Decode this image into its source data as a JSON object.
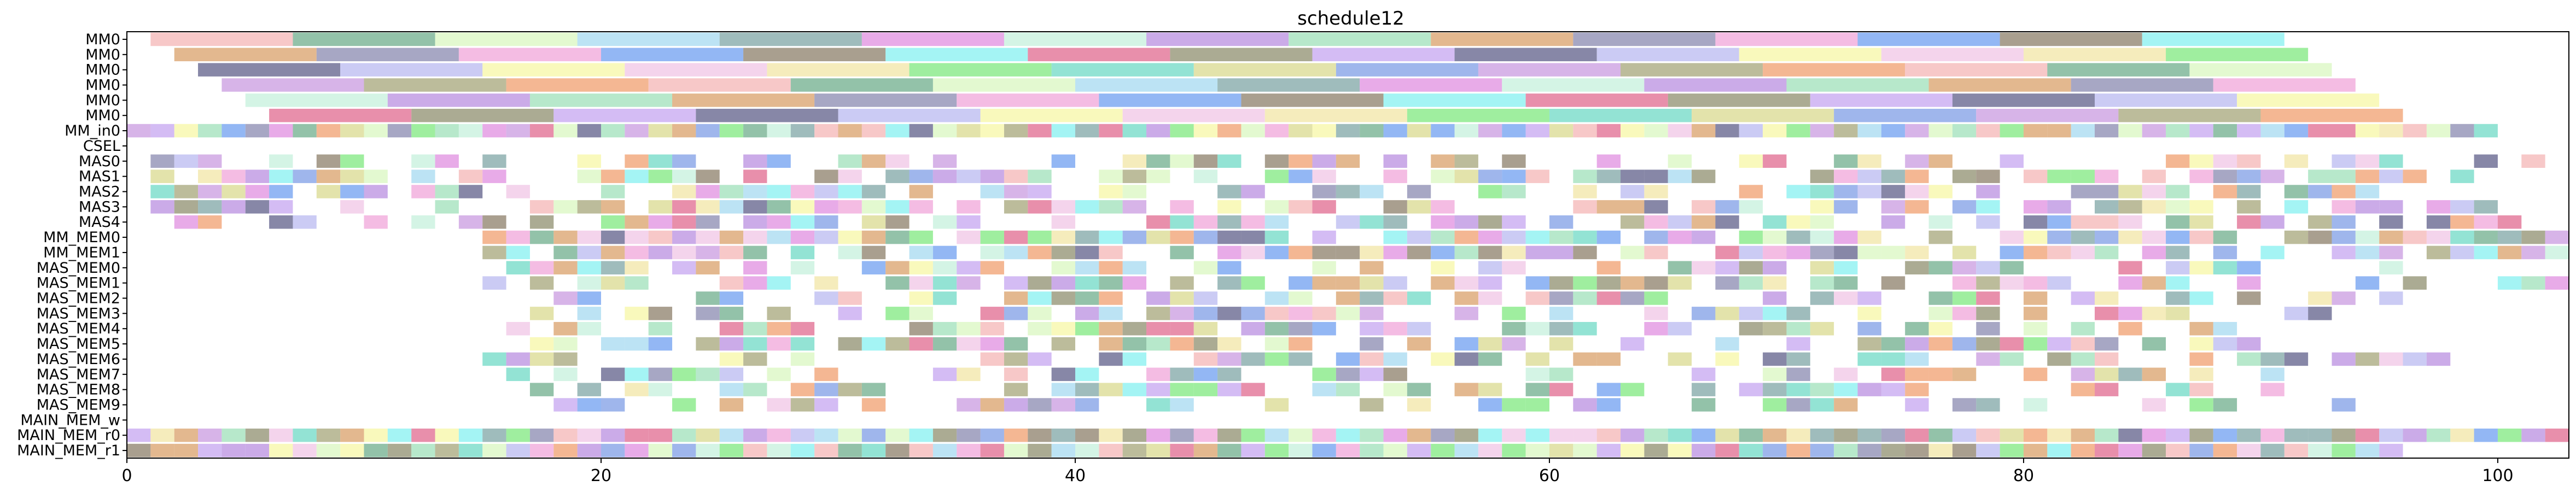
{
  "chart_data": {
    "type": "gantt",
    "title": "schedule12",
    "xlim": [
      0,
      103
    ],
    "xticks": [
      0,
      20,
      40,
      60,
      80,
      100
    ],
    "grid": false,
    "rows": [
      "MM0",
      "MM0",
      "MM0",
      "MM0",
      "MM0",
      "MM0",
      "MM_in0",
      "CSEL",
      "MAS0",
      "MAS1",
      "MAS2",
      "MAS3",
      "MAS4",
      "MM_MEM0",
      "MM_MEM1",
      "MAS_MEM0",
      "MAS_MEM1",
      "MAS_MEM2",
      "MAS_MEM3",
      "MAS_MEM4",
      "MAS_MEM5",
      "MAS_MEM6",
      "MAS_MEM7",
      "MAS_MEM8",
      "MAS_MEM9",
      "MAIN_MEM_w",
      "MAIN_MEM_r0",
      "MAIN_MEM_r1"
    ],
    "mm_rows": [
      {
        "start": 1.0,
        "duration": 6,
        "count": 15
      },
      {
        "start": 2.0,
        "duration": 6,
        "count": 15
      },
      {
        "start": 3.0,
        "duration": 6,
        "count": 15
      },
      {
        "start": 4.0,
        "duration": 6,
        "count": 15
      },
      {
        "start": 5.0,
        "duration": 6,
        "count": 15
      },
      {
        "start": 6.0,
        "duration": 6,
        "count": 15
      }
    ],
    "block_rows": [
      {
        "row": "MM_in0",
        "start": 0,
        "end": 100,
        "fill": 1.0
      },
      {
        "row": "MAS0",
        "start": 1,
        "end": 103,
        "fill": 0.62
      },
      {
        "row": "MAS1",
        "start": 1,
        "end": 99,
        "fill": 0.62
      },
      {
        "row": "MAS2",
        "start": 1,
        "end": 95,
        "fill": 0.66
      },
      {
        "row": "MAS3",
        "start": 1,
        "end": 101,
        "fill": 0.64
      },
      {
        "row": "MAS4",
        "start": 1,
        "end": 102,
        "fill": 0.66
      },
      {
        "row": "MM_MEM0",
        "start": 15,
        "end": 103,
        "fill": 0.86
      },
      {
        "row": "MM_MEM1",
        "start": 15,
        "end": 103,
        "fill": 0.82
      },
      {
        "row": "MAS_MEM0",
        "start": 16,
        "end": 96,
        "fill": 0.66
      },
      {
        "row": "MAS_MEM1",
        "start": 15,
        "end": 103,
        "fill": 0.6
      },
      {
        "row": "MAS_MEM2",
        "start": 16,
        "end": 96,
        "fill": 0.62
      },
      {
        "row": "MAS_MEM3",
        "start": 16,
        "end": 93,
        "fill": 0.6
      },
      {
        "row": "MAS_MEM4",
        "start": 16,
        "end": 92,
        "fill": 0.58
      },
      {
        "row": "MAS_MEM5",
        "start": 16,
        "end": 92,
        "fill": 0.58
      },
      {
        "row": "MAS_MEM6",
        "start": 15,
        "end": 99,
        "fill": 0.58
      },
      {
        "row": "MAS_MEM7",
        "start": 16,
        "end": 91,
        "fill": 0.56
      },
      {
        "row": "MAS_MEM8",
        "start": 16,
        "end": 92,
        "fill": 0.56
      },
      {
        "row": "MAS_MEM9",
        "start": 17,
        "end": 95,
        "fill": 0.52
      },
      {
        "row": "MAIN_MEM_r0",
        "start": 0,
        "end": 103,
        "fill": 1.0
      },
      {
        "row": "MAIN_MEM_r1",
        "start": 0,
        "end": 96,
        "fill": 1.0
      }
    ],
    "palette": [
      "#f4b6b6",
      "#8c7f6a",
      "#7f9ee6",
      "#d9a06a",
      "#f2e6a6",
      "#e08fe0",
      "#5f5f8a",
      "#6fae8c",
      "#86f0f0",
      "#c99be0",
      "#8a8ab0",
      "#7fe87f",
      "#c6f0dc",
      "#b9b9f0",
      "#d9f7c0",
      "#e06a8f",
      "#a6a67a",
      "#f0a6d9",
      "#6fd9c6",
      "#b98fe0",
      "#f7f7a6",
      "#a6d9f0",
      "#8f8f6f",
      "#f09f6f",
      "#6f9ff0",
      "#d9d98f",
      "#9fe0b9",
      "#f0c6e6",
      "#7fa6a6",
      "#c6a6f0"
    ],
    "alpha": 0.75
  }
}
